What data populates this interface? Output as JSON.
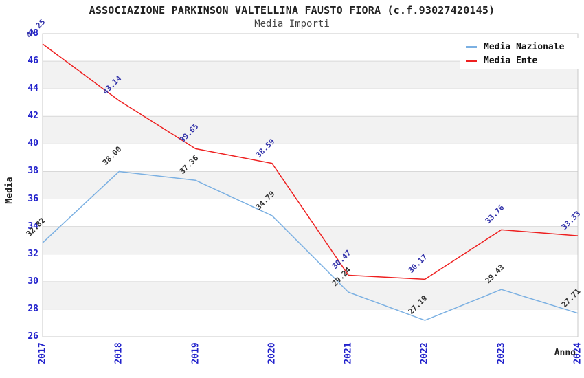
{
  "chart_data": {
    "type": "line",
    "title": "ASSOCIAZIONE PARKINSON VALTELLINA FAUSTO FIORA (c.f.93027420145)",
    "subtitle": "Media Importi",
    "xlabel": "Anno",
    "ylabel": "Media",
    "categories": [
      "2017",
      "2018",
      "2019",
      "2020",
      "2021",
      "2022",
      "2023",
      "2024"
    ],
    "series": [
      {
        "name": "Media Nazionale",
        "color": "#7bb0e2",
        "label_color": "#333333",
        "values": [
          32.82,
          38.0,
          37.36,
          34.79,
          29.24,
          27.19,
          29.43,
          27.71
        ],
        "point_labels": [
          "32.82",
          "38.00",
          "37.36",
          "34.79",
          "29.24",
          "27.19",
          "29.43",
          "27.71"
        ]
      },
      {
        "name": "Media Ente",
        "color": "#ee2020",
        "label_color": "#3333aa",
        "values": [
          47.25,
          43.14,
          39.65,
          38.59,
          30.47,
          30.17,
          33.76,
          33.33
        ],
        "point_labels": [
          "47.25",
          "43.14",
          "39.65",
          "38.59",
          "30.47",
          "30.17",
          "33.76",
          "33.33"
        ]
      }
    ],
    "ylim": [
      26,
      48
    ],
    "ytick_step": 2,
    "y_ticks": [
      "26",
      "28",
      "30",
      "32",
      "34",
      "36",
      "38",
      "40",
      "42",
      "44",
      "46",
      "48"
    ],
    "grid": "horizontal",
    "band_fill": "#f2f2f2",
    "grid_color": "#d8d8d8",
    "border_color": "#c8c8c8",
    "tick_color": "#2222cc",
    "legend_position": "top-right"
  }
}
